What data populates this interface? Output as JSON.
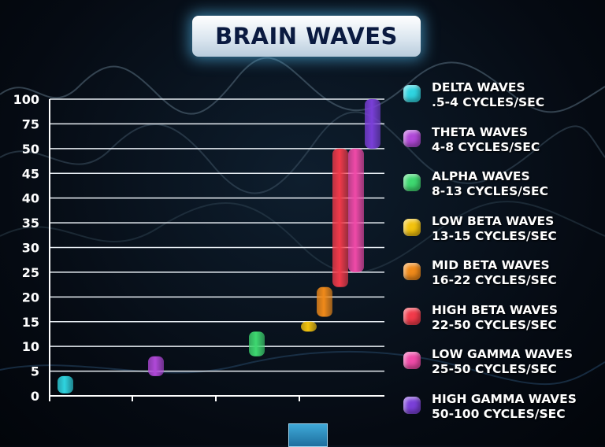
{
  "title": "BRAIN WAVES",
  "chart_data": {
    "type": "bar",
    "y_ticks": [
      "0",
      "5",
      "10",
      "15",
      "20",
      "25",
      "30",
      "35",
      "40",
      "45",
      "50",
      "75",
      "100"
    ],
    "series": [
      {
        "name": "DELTA WAVES",
        "range_label": ".5-4 CYCLES/SEC",
        "low": 0.5,
        "high": 4,
        "color": "#2fd4e0"
      },
      {
        "name": "THETA WAVES",
        "range_label": "4-8 CYCLES/SEC",
        "low": 4,
        "high": 8,
        "color": "#b048d8"
      },
      {
        "name": "ALPHA WAVES",
        "range_label": "8-13 CYCLES/SEC",
        "low": 8,
        "high": 13,
        "color": "#3ed870"
      },
      {
        "name": "LOW BETA WAVES",
        "range_label": "13-15 CYCLES/SEC",
        "low": 13,
        "high": 15,
        "color": "#f2c20e"
      },
      {
        "name": "MID BETA WAVES",
        "range_label": "16-22 CYCLES/SEC",
        "low": 16,
        "high": 22,
        "color": "#f08a1a"
      },
      {
        "name": "HIGH BETA WAVES",
        "range_label": "22-50 CYCLES/SEC",
        "low": 22,
        "high": 50,
        "color": "#f23a4a"
      },
      {
        "name": "LOW GAMMA WAVES",
        "range_label": "25-50 CYCLES/SEC",
        "low": 25,
        "high": 50,
        "color": "#f04aa8"
      },
      {
        "name": "HIGH GAMMA WAVES",
        "range_label": "50-100 CYCLES/SEC",
        "low": 50,
        "high": 100,
        "color": "#7a3fd8"
      }
    ],
    "grid": true,
    "legend": "right"
  }
}
